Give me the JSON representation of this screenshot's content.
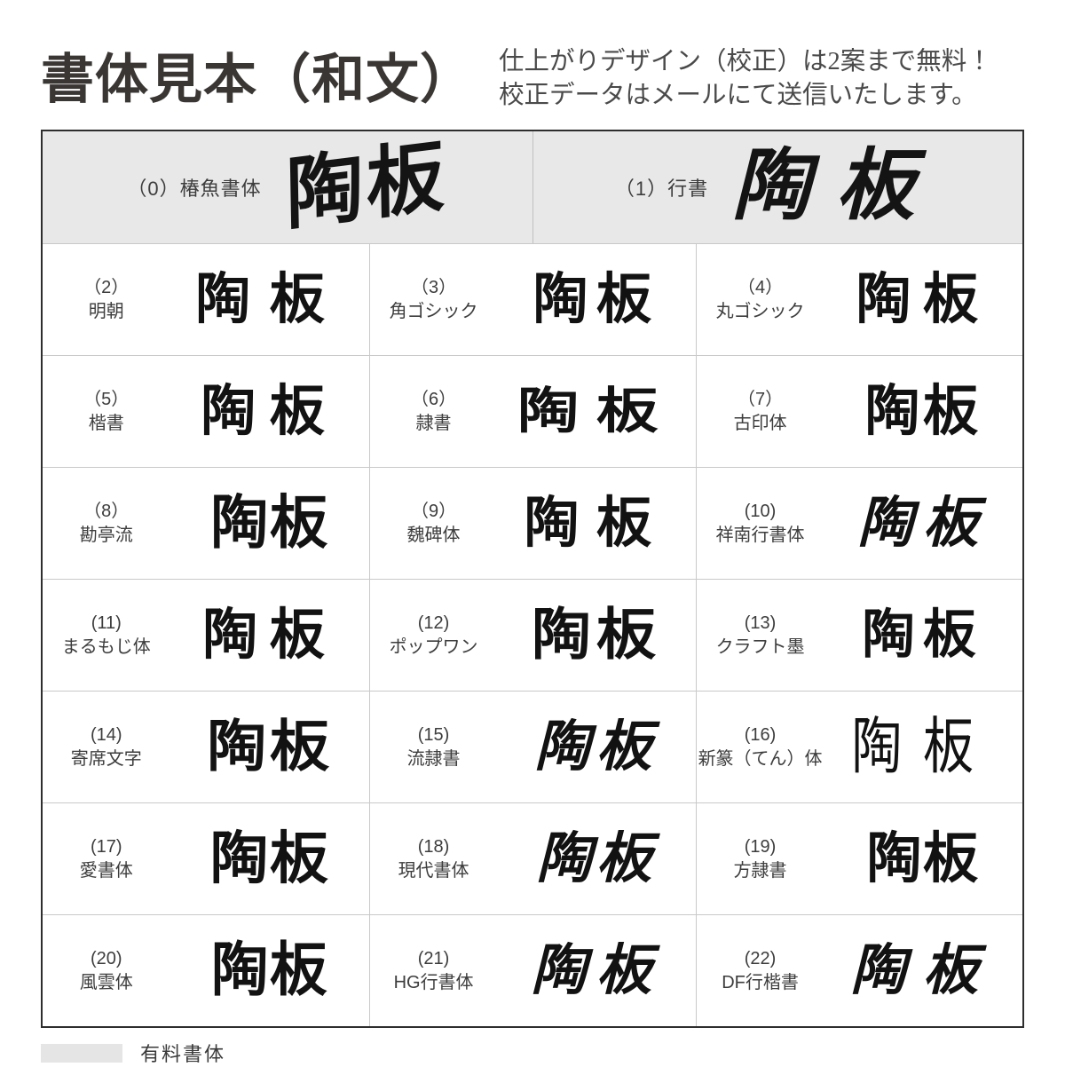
{
  "header": {
    "title": "書体見本（和文）",
    "subtitle_line1": "仕上がりデザイン（校正）は2案まで無料！",
    "subtitle_line2": "校正データはメールにて送信いたします。"
  },
  "sample_text": "陶板",
  "featured_row_background": "#e8e8e8",
  "featured": [
    {
      "label": "（0）椿魚書体",
      "sample": "陶板",
      "style": "brush0"
    },
    {
      "label": "（1）行書",
      "sample": "陶板",
      "style": "brush1"
    }
  ],
  "grid": [
    {
      "number": "（2）",
      "name": "明朝",
      "sample": "陶板",
      "style": "mincho"
    },
    {
      "number": "（3）",
      "name": "角ゴシック",
      "sample": "陶板",
      "style": "gothic"
    },
    {
      "number": "（4）",
      "name": "丸ゴシック",
      "sample": "陶板",
      "style": "maru"
    },
    {
      "number": "（5）",
      "name": "楷書",
      "sample": "陶板",
      "style": "kaisho"
    },
    {
      "number": "（6）",
      "name": "隷書",
      "sample": "陶板",
      "style": "reisho"
    },
    {
      "number": "（7）",
      "name": "古印体",
      "sample": "陶板",
      "style": "koin"
    },
    {
      "number": "（8）",
      "name": "勘亭流",
      "sample": "陶板",
      "style": "kantei"
    },
    {
      "number": "（9）",
      "name": "魏碑体",
      "sample": "陶板",
      "style": "gihi"
    },
    {
      "number": "(10)",
      "name": "祥南行書体",
      "sample": "陶板",
      "style": "gyosho"
    },
    {
      "number": "(11)",
      "name": "まるもじ体",
      "sample": "陶板",
      "style": "maru"
    },
    {
      "number": "(12)",
      "name": "ポップワン",
      "sample": "陶板",
      "style": "pop"
    },
    {
      "number": "(13)",
      "name": "クラフト墨",
      "sample": "陶板",
      "style": "craft"
    },
    {
      "number": "(14)",
      "name": "寄席文字",
      "sample": "陶板",
      "style": "yose"
    },
    {
      "number": "(15)",
      "name": "流隷書",
      "sample": "陶板",
      "style": "ryurei"
    },
    {
      "number": "(16)",
      "name": "新篆（てん）体",
      "sample": "陶板",
      "style": "ten"
    },
    {
      "number": "(17)",
      "name": "愛書体",
      "sample": "陶板",
      "style": "ai"
    },
    {
      "number": "(18)",
      "name": "現代書体",
      "sample": "陶板",
      "style": "gendai"
    },
    {
      "number": "(19)",
      "name": "方隷書",
      "sample": "陶板",
      "style": "hourei"
    },
    {
      "number": "(20)",
      "name": "風雲体",
      "sample": "陶板",
      "style": "fuun"
    },
    {
      "number": "(21)",
      "name": "HG行書体",
      "sample": "陶板",
      "style": "gyosho"
    },
    {
      "number": "(22)",
      "name": "DF行楷書",
      "sample": "陶板",
      "style": "gyokai"
    }
  ],
  "legend": {
    "swatch_color": "#e5e5e5",
    "label": "有料書体"
  }
}
